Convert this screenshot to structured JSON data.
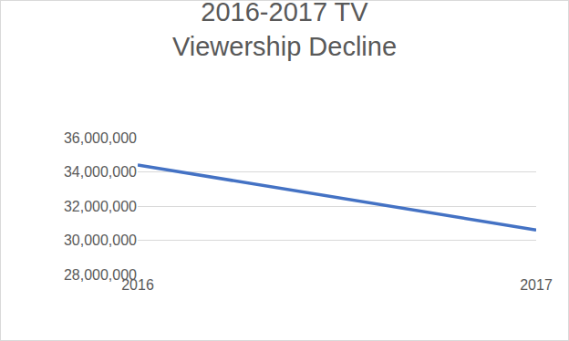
{
  "chart_data": {
    "type": "line",
    "title": "2016-2017 TV Viewership Decline",
    "categories": [
      "2016",
      "2017"
    ],
    "values": [
      34400000,
      30600000
    ],
    "color": "#4472c4",
    "ylim": [
      28000000,
      36000000
    ],
    "yticks": [
      {
        "value": 28000000,
        "label": "28,000,000"
      },
      {
        "value": 30000000,
        "label": "30,000,000"
      },
      {
        "value": 32000000,
        "label": "32,000,000"
      },
      {
        "value": 34000000,
        "label": "34,000,000"
      },
      {
        "value": 36000000,
        "label": "36,000,000"
      }
    ],
    "grid": true
  }
}
